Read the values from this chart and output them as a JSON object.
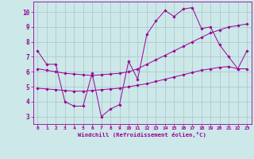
{
  "xlabel": "Windchill (Refroidissement éolien,°C)",
  "bg_color": "#cce8e8",
  "grid_color": "#b0c8d0",
  "line_color": "#990099",
  "xlim": [
    -0.5,
    23.5
  ],
  "ylim": [
    2.5,
    10.7
  ],
  "yticks": [
    3,
    4,
    5,
    6,
    7,
    8,
    9,
    10
  ],
  "xticks": [
    0,
    1,
    2,
    3,
    4,
    5,
    6,
    7,
    8,
    9,
    10,
    11,
    12,
    13,
    14,
    15,
    16,
    17,
    18,
    19,
    20,
    21,
    22,
    23
  ],
  "line1_x": [
    0,
    1,
    2,
    3,
    4,
    5,
    6,
    7,
    8,
    9,
    10,
    11,
    12,
    13,
    14,
    15,
    16,
    17,
    18,
    19,
    20,
    21,
    22,
    23
  ],
  "line1_y": [
    7.4,
    6.5,
    6.5,
    4.0,
    3.7,
    3.7,
    5.9,
    3.0,
    3.5,
    3.8,
    6.7,
    5.5,
    8.5,
    9.4,
    10.1,
    9.7,
    10.2,
    10.3,
    8.9,
    9.0,
    7.8,
    7.0,
    6.2,
    7.4
  ],
  "line2_x": [
    0,
    1,
    2,
    3,
    4,
    5,
    6,
    7,
    8,
    9,
    10,
    11,
    12,
    13,
    14,
    15,
    16,
    17,
    18,
    19,
    20,
    21,
    22,
    23
  ],
  "line2_y": [
    6.2,
    6.1,
    6.0,
    5.9,
    5.85,
    5.8,
    5.75,
    5.8,
    5.85,
    5.9,
    6.0,
    6.2,
    6.5,
    6.8,
    7.1,
    7.4,
    7.7,
    8.0,
    8.3,
    8.6,
    8.8,
    9.0,
    9.1,
    9.2
  ],
  "line3_x": [
    0,
    1,
    2,
    3,
    4,
    5,
    6,
    7,
    8,
    9,
    10,
    11,
    12,
    13,
    14,
    15,
    16,
    17,
    18,
    19,
    20,
    21,
    22,
    23
  ],
  "line3_y": [
    4.9,
    4.85,
    4.8,
    4.75,
    4.7,
    4.7,
    4.75,
    4.8,
    4.85,
    4.9,
    5.0,
    5.1,
    5.2,
    5.35,
    5.5,
    5.65,
    5.8,
    5.95,
    6.1,
    6.2,
    6.3,
    6.35,
    6.2,
    6.2
  ]
}
